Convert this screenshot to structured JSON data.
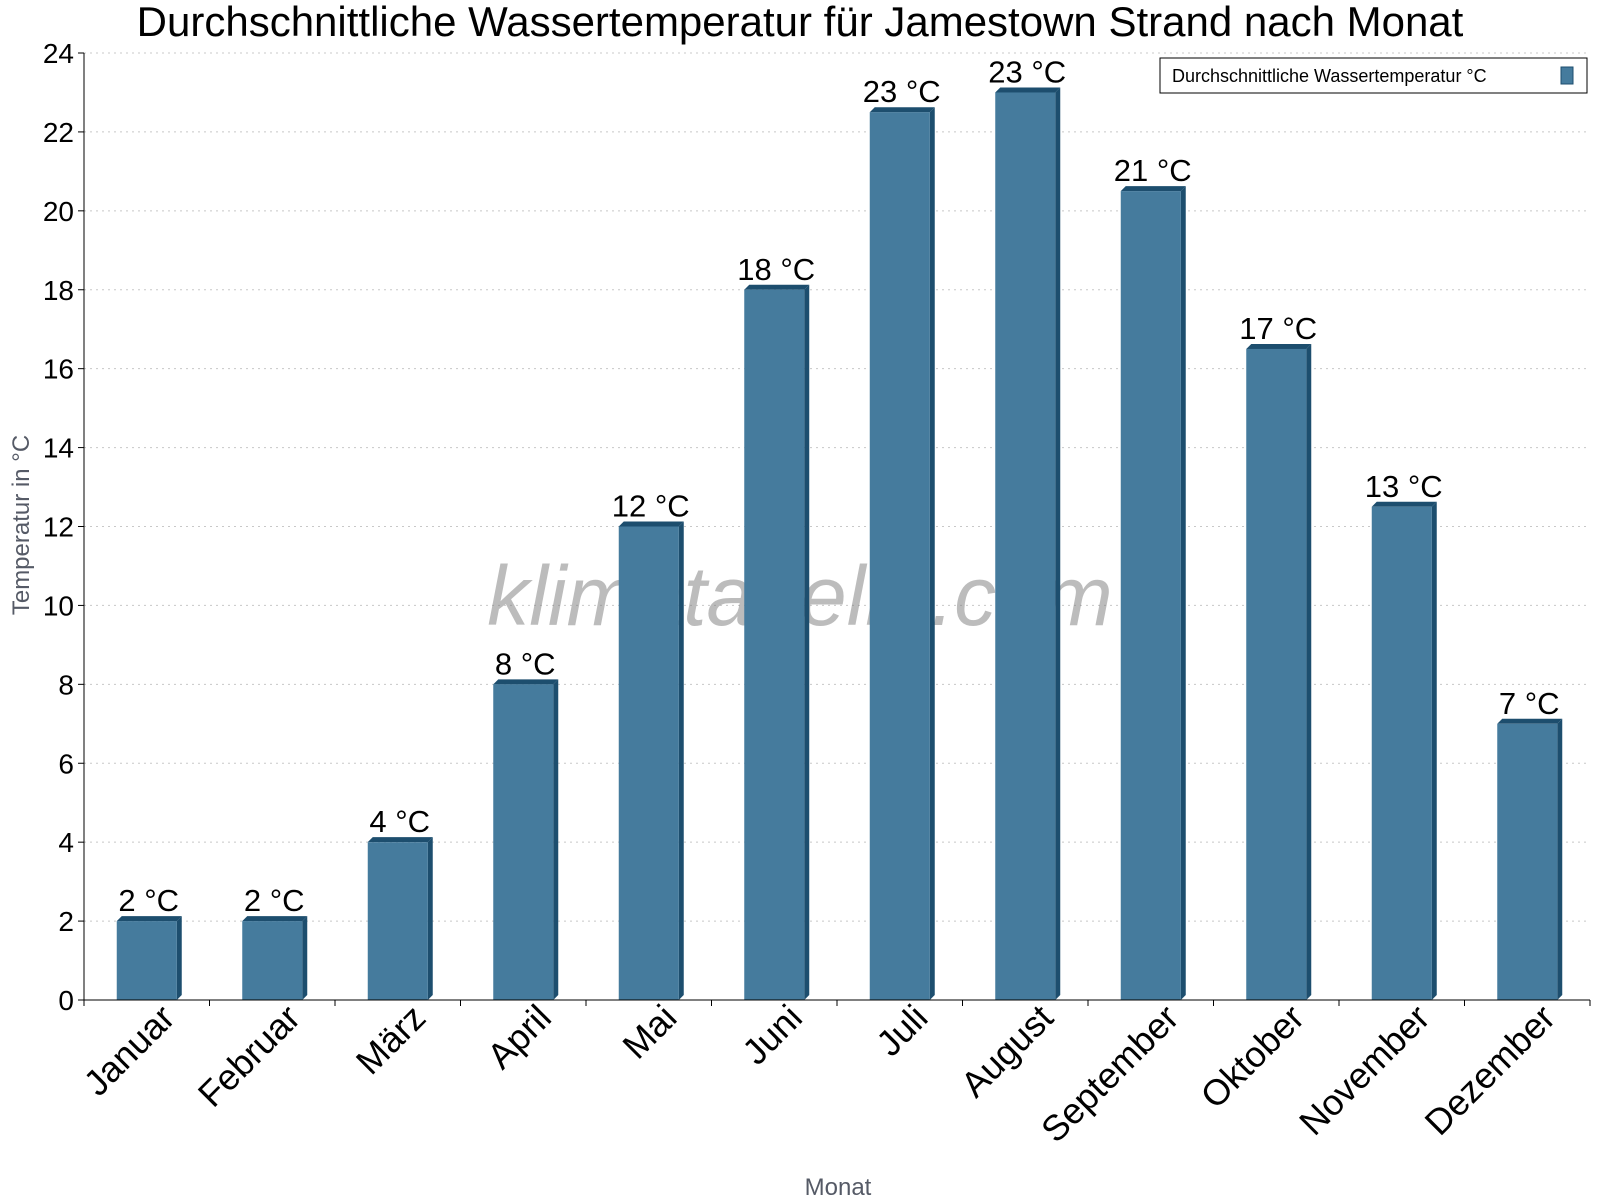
{
  "chart_data": {
    "type": "bar",
    "title": "Durchschnittliche Wassertemperatur für Jamestown Strand nach Monat",
    "xlabel": "Monat",
    "ylabel": "Temperatur in °C",
    "ylim": [
      0,
      24
    ],
    "ytick_step": 2,
    "grid": true,
    "legend_placement": "top-right",
    "watermark": "klimatabelle.com",
    "categories": [
      "Januar",
      "Februar",
      "März",
      "April",
      "Mai",
      "Juni",
      "Juli",
      "August",
      "September",
      "Oktober",
      "November",
      "Dezember"
    ],
    "series": [
      {
        "name": "Durchschnittliche Wassertemperatur °C",
        "color": "#457b9d",
        "edge_color": "#1d4e6e",
        "values": [
          2,
          2,
          4,
          8,
          12,
          18,
          22.5,
          23,
          20.5,
          16.5,
          12.5,
          7
        ],
        "labels": [
          "2 °C",
          "2 °C",
          "4 °C",
          "8 °C",
          "12 °C",
          "18 °C",
          "23 °C",
          "23 °C",
          "21 °C",
          "17 °C",
          "13 °C",
          "7 °C"
        ]
      }
    ]
  }
}
